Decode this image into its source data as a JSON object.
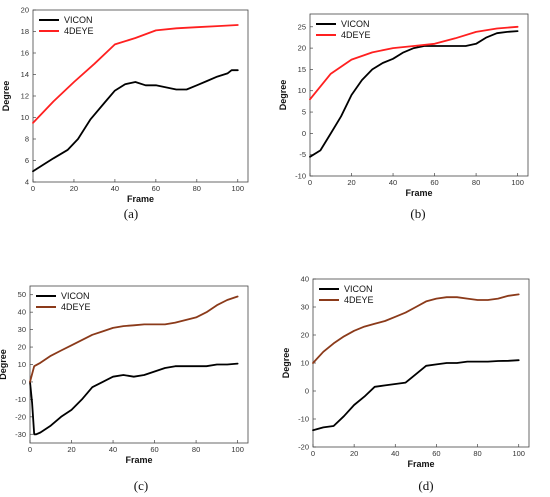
{
  "chart_data": [
    {
      "type": "line",
      "caption": "(a)",
      "xlabel": "Frame",
      "ylabel": "Degree",
      "xlim": [
        0,
        105
      ],
      "ylim": [
        4,
        20
      ],
      "xticks": [
        0,
        20,
        40,
        60,
        80,
        100
      ],
      "yticks": [
        4,
        6,
        8,
        10,
        12,
        14,
        16,
        18,
        20
      ],
      "legend_position": "top-left",
      "series": [
        {
          "name": "VICON",
          "color": "#000000",
          "x": [
            0,
            5,
            10,
            17,
            22,
            28,
            35,
            40,
            45,
            50,
            55,
            60,
            65,
            70,
            75,
            80,
            85,
            90,
            95,
            97,
            100
          ],
          "y": [
            5.0,
            5.6,
            6.2,
            7.0,
            8.0,
            9.8,
            11.4,
            12.5,
            13.1,
            13.3,
            13.0,
            13.0,
            12.8,
            12.6,
            12.6,
            13.0,
            13.4,
            13.8,
            14.1,
            14.4,
            14.4
          ]
        },
        {
          "name": "4DEYE",
          "color": "#ff2020",
          "x": [
            0,
            10,
            20,
            30,
            40,
            50,
            60,
            70,
            80,
            90,
            100
          ],
          "y": [
            9.5,
            11.5,
            13.3,
            15.0,
            16.8,
            17.4,
            18.1,
            18.3,
            18.4,
            18.5,
            18.6
          ]
        }
      ]
    },
    {
      "type": "line",
      "caption": "(b)",
      "xlabel": "Frame",
      "ylabel": "Degree",
      "xlim": [
        0,
        105
      ],
      "ylim": [
        -10,
        28
      ],
      "xticks": [
        0,
        20,
        40,
        60,
        80,
        100
      ],
      "yticks": [
        -10,
        -5,
        0,
        5,
        10,
        15,
        20,
        25
      ],
      "legend_position": "top-left",
      "series": [
        {
          "name": "VICON",
          "color": "#000000",
          "x": [
            0,
            5,
            10,
            15,
            20,
            25,
            30,
            35,
            40,
            45,
            50,
            55,
            60,
            65,
            70,
            75,
            80,
            85,
            90,
            95,
            100
          ],
          "y": [
            -5.5,
            -4.0,
            0.0,
            4.0,
            9.0,
            12.5,
            15.0,
            16.5,
            17.5,
            19.0,
            20.0,
            20.5,
            20.5,
            20.5,
            20.5,
            20.5,
            21.0,
            22.5,
            23.5,
            23.8,
            24.0
          ]
        },
        {
          "name": "4DEYE",
          "color": "#ff2020",
          "x": [
            0,
            10,
            20,
            30,
            40,
            50,
            60,
            70,
            80,
            90,
            100
          ],
          "y": [
            8.0,
            14.0,
            17.3,
            19.0,
            20.0,
            20.5,
            21.0,
            22.3,
            23.8,
            24.6,
            25.0
          ]
        }
      ]
    },
    {
      "type": "line",
      "caption": "(c)",
      "xlabel": "Frame",
      "ylabel": "Degree",
      "xlim": [
        0,
        105
      ],
      "ylim": [
        -35,
        55
      ],
      "xticks": [
        0,
        20,
        40,
        60,
        80,
        100
      ],
      "yticks": [
        -30,
        -20,
        -10,
        0,
        10,
        20,
        30,
        40,
        50
      ],
      "legend_position": "top-left",
      "series": [
        {
          "name": "VICON",
          "color": "#000000",
          "x": [
            0,
            1,
            2,
            3,
            5,
            10,
            15,
            20,
            25,
            30,
            35,
            40,
            45,
            50,
            55,
            60,
            65,
            70,
            75,
            80,
            85,
            90,
            95,
            100
          ],
          "y": [
            0,
            -12,
            -30,
            -30,
            -29,
            -25,
            -20,
            -16,
            -10,
            -3,
            0,
            3,
            4,
            3,
            4,
            6,
            8,
            9,
            9,
            9,
            9,
            10,
            10,
            10.5
          ]
        },
        {
          "name": "4DEYE",
          "color": "#8b3a1a",
          "x": [
            0,
            2,
            5,
            10,
            15,
            20,
            25,
            30,
            35,
            40,
            45,
            50,
            55,
            60,
            65,
            70,
            75,
            80,
            85,
            90,
            95,
            100
          ],
          "y": [
            0,
            9,
            11,
            15,
            18,
            21,
            24,
            27,
            29,
            31,
            32,
            32.5,
            33,
            33,
            33,
            34,
            35.5,
            37,
            40,
            44,
            47,
            49
          ]
        }
      ]
    },
    {
      "type": "line",
      "caption": "(d)",
      "xlabel": "Frame",
      "ylabel": "Degree",
      "xlim": [
        0,
        105
      ],
      "ylim": [
        -20,
        40
      ],
      "xticks": [
        0,
        20,
        40,
        60,
        80,
        100
      ],
      "yticks": [
        -20,
        -10,
        0,
        10,
        20,
        30,
        40
      ],
      "legend_position": "top-left",
      "series": [
        {
          "name": "VICON",
          "color": "#000000",
          "x": [
            0,
            5,
            10,
            15,
            20,
            25,
            30,
            35,
            40,
            45,
            50,
            55,
            60,
            65,
            70,
            75,
            80,
            85,
            90,
            95,
            100
          ],
          "y": [
            -14,
            -13,
            -12.5,
            -9,
            -5,
            -2,
            1.5,
            2,
            2.5,
            3,
            6,
            9,
            9.5,
            10,
            10,
            10.5,
            10.5,
            10.5,
            10.7,
            10.8,
            11
          ]
        },
        {
          "name": "4DEYE",
          "color": "#8b3a1a",
          "x": [
            0,
            5,
            10,
            15,
            20,
            25,
            30,
            35,
            40,
            45,
            50,
            55,
            60,
            65,
            70,
            75,
            80,
            85,
            90,
            95,
            100
          ],
          "y": [
            10,
            14,
            17,
            19.5,
            21.5,
            23,
            24,
            25,
            26.5,
            28,
            30,
            32,
            33,
            33.5,
            33.5,
            33,
            32.5,
            32.5,
            33,
            34,
            34.5
          ]
        }
      ]
    }
  ]
}
